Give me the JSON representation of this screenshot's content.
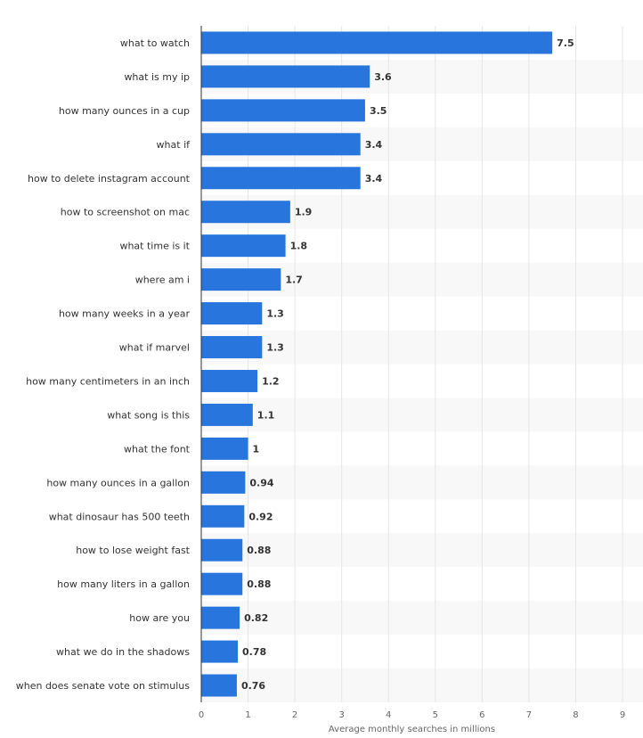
{
  "chart_data": {
    "type": "bar",
    "orientation": "horizontal",
    "categories": [
      "what to watch",
      "what is my ip",
      "how many ounces in a cup",
      "what if",
      "how to delete instagram account",
      "how to screenshot on mac",
      "what time is it",
      "where am i",
      "how many weeks in a year",
      "what if marvel",
      "how many centimeters in an inch",
      "what song is this",
      "what the font",
      "how many ounces in a gallon",
      "what dinosaur has 500 teeth",
      "how to lose weight fast",
      "how many liters in a gallon",
      "how are you",
      "what we do in the shadows",
      "when does senate vote on stimulus"
    ],
    "values": [
      7.5,
      3.6,
      3.5,
      3.4,
      3.4,
      1.9,
      1.8,
      1.7,
      1.3,
      1.3,
      1.2,
      1.1,
      1,
      0.94,
      0.92,
      0.88,
      0.88,
      0.82,
      0.78,
      0.76
    ],
    "value_labels": [
      "7.5",
      "3.6",
      "3.5",
      "3.4",
      "3.4",
      "1.9",
      "1.8",
      "1.7",
      "1.3",
      "1.3",
      "1.2",
      "1.1",
      "1",
      "0.94",
      "0.92",
      "0.88",
      "0.88",
      "0.82",
      "0.78",
      "0.76"
    ],
    "xlabel": "Average monthly searches in millions",
    "xlim": [
      0,
      9
    ],
    "xticks": [
      "0",
      "1",
      "2",
      "3",
      "4",
      "5",
      "6",
      "7",
      "8",
      "9"
    ],
    "grid": true,
    "legend": "none",
    "colors": {
      "bar": "#2876dd",
      "stripe": "#f8f8f8",
      "grid": "#e6e6e6",
      "axis": "#333333",
      "text": "#333333",
      "tick_text": "#666666"
    }
  }
}
